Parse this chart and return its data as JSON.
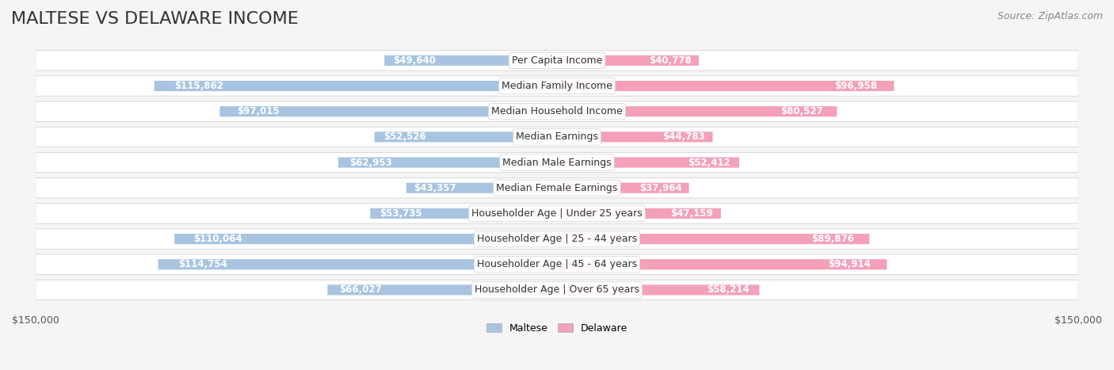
{
  "title": "MALTESE VS DELAWARE INCOME",
  "source": "Source: ZipAtlas.com",
  "categories": [
    "Per Capita Income",
    "Median Family Income",
    "Median Household Income",
    "Median Earnings",
    "Median Male Earnings",
    "Median Female Earnings",
    "Householder Age | Under 25 years",
    "Householder Age | 25 - 44 years",
    "Householder Age | 45 - 64 years",
    "Householder Age | Over 65 years"
  ],
  "maltese_values": [
    49640,
    115862,
    97015,
    52526,
    62953,
    43357,
    53735,
    110064,
    114754,
    66027
  ],
  "delaware_values": [
    40778,
    96958,
    80527,
    44783,
    52412,
    37964,
    47159,
    89876,
    94914,
    58214
  ],
  "max_value": 150000,
  "maltese_color_bar": "#a8c4e0",
  "delaware_color_bar": "#f4a0b8",
  "maltese_color_dark": "#6fa8d8",
  "delaware_color_dark": "#f07090",
  "maltese_label_high": "#5a8abf",
  "delaware_label_high": "#e05080",
  "bg_color": "#f5f5f5",
  "row_bg": "#ffffff",
  "row_alt_bg": "#f0f0f0",
  "title_fontsize": 16,
  "label_fontsize": 9,
  "value_fontsize": 8.5,
  "axis_fontsize": 9,
  "source_fontsize": 9
}
